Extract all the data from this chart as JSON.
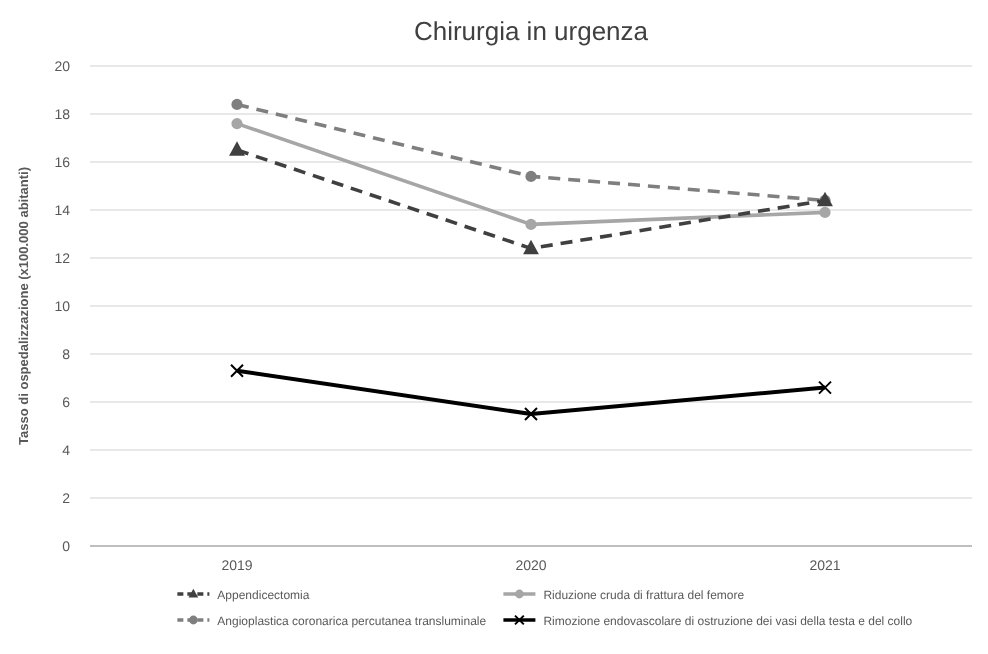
{
  "chart_data": {
    "type": "line",
    "title": "Chirurgia in urgenza",
    "ylabel": "Tasso di ospedalizzazione (x100.000 abitanti)",
    "categories": [
      "2019",
      "2020",
      "2021"
    ],
    "ylim": [
      0,
      20
    ],
    "yticks": [
      0,
      2,
      4,
      6,
      8,
      10,
      12,
      14,
      16,
      18,
      20
    ],
    "grid": "y",
    "legend": "bottom",
    "series": [
      {
        "name": "Appendicectomia",
        "color": "#404040",
        "values": [
          16.5,
          12.4,
          14.4
        ],
        "marker": "triangle",
        "line_style": "dashed"
      },
      {
        "name": "Riduzione cruda di frattura del femore",
        "color": "#a6a6a6",
        "values": [
          17.6,
          13.4,
          13.9
        ],
        "marker": "circle",
        "line_style": "solid"
      },
      {
        "name": "Angioplastica coronarica percutanea transluminale",
        "color": "#7f7f7f",
        "values": [
          18.4,
          15.4,
          14.4
        ],
        "marker": "circle",
        "line_style": "dashed"
      },
      {
        "name": "Rimozione endovascolare di ostruzione dei vasi della testa e del collo",
        "color": "#000000",
        "values": [
          7.3,
          5.5,
          6.6
        ],
        "marker": "cross",
        "line_style": "solid"
      }
    ]
  }
}
